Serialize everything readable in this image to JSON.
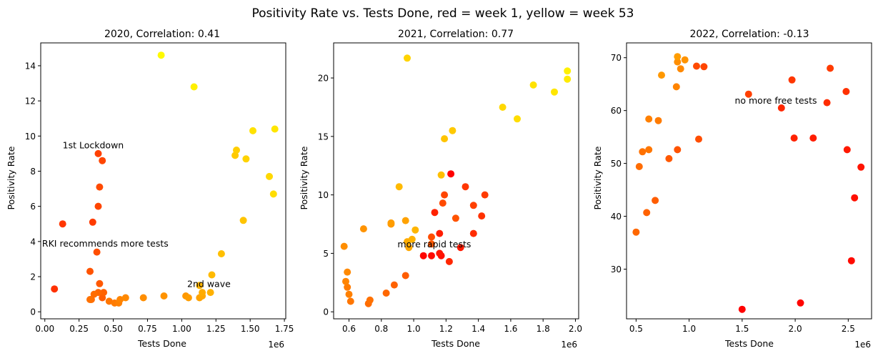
{
  "title": "Positivity Rate vs. Tests Done, red = week 1, yellow = week 53",
  "chart_data": [
    {
      "type": "scatter",
      "title": "2020, Correlation: 0.41",
      "xlabel": "Tests Done",
      "ylabel": "Positivity Rate",
      "x_offset_label": "1e6",
      "xlim": [
        -0.03,
        1.76
      ],
      "ylim": [
        -0.4,
        15.3
      ],
      "xticks": [
        0.0,
        0.25,
        0.5,
        0.75,
        1.0,
        1.25,
        1.5,
        1.75
      ],
      "xtick_labels": [
        "0.00",
        "0.25",
        "0.50",
        "0.75",
        "1.00",
        "1.25",
        "1.50",
        "1.75"
      ],
      "yticks": [
        0,
        2,
        4,
        6,
        8,
        10,
        12,
        14
      ],
      "ytick_labels": [
        "0",
        "2",
        "4",
        "6",
        "8",
        "10",
        "12",
        "14"
      ],
      "color_encoding": "week 1 = red → week 53 = yellow",
      "annotations": [
        {
          "text": "1st Lockdown",
          "x": 0.13,
          "y": 9.3
        },
        {
          "text": "RKI recommends more tests",
          "x": -0.02,
          "y": 3.7
        },
        {
          "text": "2nd wave",
          "x": 1.04,
          "y": 1.4
        }
      ],
      "points": [
        {
          "x": 0.07,
          "y": 1.3,
          "week": 11
        },
        {
          "x": 0.13,
          "y": 5.0,
          "week": 12
        },
        {
          "x": 0.35,
          "y": 5.1,
          "week": 13
        },
        {
          "x": 0.39,
          "y": 9.0,
          "week": 14
        },
        {
          "x": 0.39,
          "y": 6.0,
          "week": 15
        },
        {
          "x": 0.42,
          "y": 8.6,
          "week": 15
        },
        {
          "x": 0.4,
          "y": 7.1,
          "week": 16
        },
        {
          "x": 0.38,
          "y": 3.4,
          "week": 17
        },
        {
          "x": 0.33,
          "y": 2.3,
          "week": 18
        },
        {
          "x": 0.4,
          "y": 1.6,
          "week": 19
        },
        {
          "x": 0.42,
          "y": 0.8,
          "week": 20
        },
        {
          "x": 0.43,
          "y": 1.1,
          "week": 21
        },
        {
          "x": 0.39,
          "y": 1.1,
          "week": 22
        },
        {
          "x": 0.36,
          "y": 1.0,
          "week": 23
        },
        {
          "x": 0.34,
          "y": 0.7,
          "week": 23
        },
        {
          "x": 0.33,
          "y": 0.7,
          "week": 24
        },
        {
          "x": 0.47,
          "y": 0.6,
          "week": 25
        },
        {
          "x": 0.51,
          "y": 0.5,
          "week": 26
        },
        {
          "x": 0.54,
          "y": 0.5,
          "week": 27
        },
        {
          "x": 0.55,
          "y": 0.7,
          "week": 28
        },
        {
          "x": 0.59,
          "y": 0.8,
          "week": 29
        },
        {
          "x": 0.72,
          "y": 0.8,
          "week": 30
        },
        {
          "x": 0.87,
          "y": 0.9,
          "week": 31
        },
        {
          "x": 1.03,
          "y": 0.9,
          "week": 32
        },
        {
          "x": 1.05,
          "y": 0.8,
          "week": 33
        },
        {
          "x": 1.13,
          "y": 0.8,
          "week": 34
        },
        {
          "x": 1.15,
          "y": 0.9,
          "week": 35
        },
        {
          "x": 1.15,
          "y": 1.1,
          "week": 36
        },
        {
          "x": 1.21,
          "y": 1.1,
          "week": 37
        },
        {
          "x": 1.13,
          "y": 1.5,
          "week": 38
        },
        {
          "x": 1.22,
          "y": 2.1,
          "week": 39
        },
        {
          "x": 1.29,
          "y": 3.3,
          "week": 40
        },
        {
          "x": 1.45,
          "y": 5.2,
          "week": 41
        },
        {
          "x": 1.39,
          "y": 8.9,
          "week": 42
        },
        {
          "x": 1.4,
          "y": 9.2,
          "week": 43
        },
        {
          "x": 1.47,
          "y": 8.7,
          "week": 44
        },
        {
          "x": 1.64,
          "y": 7.7,
          "week": 45
        },
        {
          "x": 1.67,
          "y": 6.7,
          "week": 46
        },
        {
          "x": 1.52,
          "y": 10.3,
          "week": 47
        },
        {
          "x": 1.68,
          "y": 10.4,
          "week": 48
        },
        {
          "x": 1.09,
          "y": 12.8,
          "week": 50
        },
        {
          "x": 0.85,
          "y": 14.6,
          "week": 52
        }
      ]
    },
    {
      "type": "scatter",
      "title": "2021, Correlation: 0.77",
      "xlabel": "Tests Done",
      "ylabel": "Positivity Rate",
      "x_offset_label": "1e6",
      "xlim": [
        0.505,
        2.02
      ],
      "ylim": [
        -0.6,
        23.0
      ],
      "xticks": [
        0.6,
        0.8,
        1.0,
        1.2,
        1.4,
        1.6,
        1.8,
        2.0
      ],
      "xtick_labels": [
        "0.6",
        "0.8",
        "1.0",
        "1.2",
        "1.4",
        "1.6",
        "1.8",
        "2.0"
      ],
      "yticks": [
        0,
        5,
        10,
        15,
        20
      ],
      "ytick_labels": [
        "0",
        "5",
        "10",
        "15",
        "20"
      ],
      "color_encoding": "week 1 = red → week 53 = yellow",
      "annotations": [
        {
          "text": "more rapid tests",
          "x": 0.9,
          "y": 5.5
        }
      ],
      "points": [
        {
          "x": 1.23,
          "y": 11.8,
          "week": 1
        },
        {
          "x": 1.06,
          "y": 4.8,
          "week": 2
        },
        {
          "x": 1.11,
          "y": 4.8,
          "week": 3
        },
        {
          "x": 1.17,
          "y": 4.8,
          "week": 4
        },
        {
          "x": 1.16,
          "y": 5.0,
          "week": 5
        },
        {
          "x": 1.29,
          "y": 5.5,
          "week": 6
        },
        {
          "x": 1.16,
          "y": 6.7,
          "week": 7
        },
        {
          "x": 1.13,
          "y": 8.5,
          "week": 8
        },
        {
          "x": 1.22,
          "y": 4.3,
          "week": 9
        },
        {
          "x": 1.37,
          "y": 6.7,
          "week": 10
        },
        {
          "x": 1.42,
          "y": 8.2,
          "week": 11
        },
        {
          "x": 1.32,
          "y": 10.7,
          "week": 12
        },
        {
          "x": 1.44,
          "y": 10.0,
          "week": 13
        },
        {
          "x": 1.37,
          "y": 9.1,
          "week": 14
        },
        {
          "x": 1.19,
          "y": 10.0,
          "week": 15
        },
        {
          "x": 1.18,
          "y": 9.3,
          "week": 16
        },
        {
          "x": 1.11,
          "y": 6.4,
          "week": 17
        },
        {
          "x": 1.26,
          "y": 8.0,
          "week": 18
        },
        {
          "x": 1.11,
          "y": 5.8,
          "week": 19
        },
        {
          "x": 0.95,
          "y": 3.1,
          "week": 20
        },
        {
          "x": 0.88,
          "y": 2.3,
          "week": 21
        },
        {
          "x": 0.83,
          "y": 1.6,
          "week": 22
        },
        {
          "x": 0.72,
          "y": 0.7,
          "week": 23
        },
        {
          "x": 0.73,
          "y": 1.0,
          "week": 24
        },
        {
          "x": 0.61,
          "y": 0.9,
          "week": 25
        },
        {
          "x": 0.59,
          "y": 2.1,
          "week": 26
        },
        {
          "x": 0.6,
          "y": 1.5,
          "week": 27
        },
        {
          "x": 0.58,
          "y": 2.6,
          "week": 28
        },
        {
          "x": 0.59,
          "y": 3.4,
          "week": 29
        },
        {
          "x": 0.57,
          "y": 5.6,
          "week": 30
        },
        {
          "x": 0.69,
          "y": 7.1,
          "week": 31
        },
        {
          "x": 0.86,
          "y": 7.5,
          "week": 32
        },
        {
          "x": 0.86,
          "y": 7.6,
          "week": 33
        },
        {
          "x": 0.95,
          "y": 7.8,
          "week": 34
        },
        {
          "x": 0.97,
          "y": 5.5,
          "week": 35
        },
        {
          "x": 0.96,
          "y": 6.0,
          "week": 36
        },
        {
          "x": 0.99,
          "y": 6.2,
          "week": 37
        },
        {
          "x": 1.01,
          "y": 7.0,
          "week": 38
        },
        {
          "x": 0.91,
          "y": 10.7,
          "week": 39
        },
        {
          "x": 1.17,
          "y": 11.7,
          "week": 40
        },
        {
          "x": 1.19,
          "y": 14.8,
          "week": 41
        },
        {
          "x": 1.24,
          "y": 15.5,
          "week": 42
        },
        {
          "x": 0.96,
          "y": 21.7,
          "week": 44
        },
        {
          "x": 1.55,
          "y": 17.5,
          "week": 45
        },
        {
          "x": 1.64,
          "y": 16.5,
          "week": 46
        },
        {
          "x": 1.74,
          "y": 19.4,
          "week": 47
        },
        {
          "x": 1.87,
          "y": 18.8,
          "week": 48
        },
        {
          "x": 1.95,
          "y": 19.9,
          "week": 49
        },
        {
          "x": 1.95,
          "y": 20.6,
          "week": 50
        }
      ]
    },
    {
      "type": "scatter",
      "title": "2022, Correlation: -0.13",
      "xlabel": "Tests Done",
      "ylabel": "Positivity Rate",
      "x_offset_label": "1e6",
      "xlim": [
        0.41,
        2.72
      ],
      "ylim": [
        20.6,
        72.8
      ],
      "xticks": [
        0.5,
        1.0,
        1.5,
        2.0,
        2.5
      ],
      "xtick_labels": [
        "0.5",
        "1.0",
        "1.5",
        "2.0",
        "2.5"
      ],
      "yticks": [
        30,
        40,
        50,
        60,
        70
      ],
      "ytick_labels": [
        "30",
        "40",
        "50",
        "60",
        "70"
      ],
      "color_encoding": "week 1 = red → week 53 = yellow",
      "annotations": [
        {
          "text": "no more free tests",
          "x": 1.43,
          "y": 61.3
        }
      ],
      "points": [
        {
          "x": 1.5,
          "y": 22.4,
          "week": 1
        },
        {
          "x": 2.05,
          "y": 23.6,
          "week": 2
        },
        {
          "x": 2.53,
          "y": 31.6,
          "week": 3
        },
        {
          "x": 2.56,
          "y": 43.5,
          "week": 4
        },
        {
          "x": 2.62,
          "y": 49.3,
          "week": 5
        },
        {
          "x": 2.49,
          "y": 52.6,
          "week": 6
        },
        {
          "x": 2.17,
          "y": 54.8,
          "week": 7
        },
        {
          "x": 1.99,
          "y": 54.8,
          "week": 8
        },
        {
          "x": 1.87,
          "y": 60.5,
          "week": 9
        },
        {
          "x": 2.3,
          "y": 61.5,
          "week": 10
        },
        {
          "x": 2.48,
          "y": 63.6,
          "week": 11
        },
        {
          "x": 1.97,
          "y": 65.8,
          "week": 12
        },
        {
          "x": 2.33,
          "y": 68.0,
          "week": 13
        },
        {
          "x": 1.56,
          "y": 63.1,
          "week": 14
        },
        {
          "x": 1.14,
          "y": 68.3,
          "week": 15
        },
        {
          "x": 1.07,
          "y": 68.4,
          "week": 16
        },
        {
          "x": 1.09,
          "y": 54.6,
          "week": 17
        },
        {
          "x": 0.89,
          "y": 52.6,
          "week": 18
        },
        {
          "x": 0.81,
          "y": 50.9,
          "week": 19
        },
        {
          "x": 0.68,
          "y": 43.0,
          "week": 20
        },
        {
          "x": 0.6,
          "y": 40.7,
          "week": 21
        },
        {
          "x": 0.5,
          "y": 37.0,
          "week": 22
        },
        {
          "x": 0.53,
          "y": 49.4,
          "week": 23
        },
        {
          "x": 0.56,
          "y": 52.2,
          "week": 24
        },
        {
          "x": 0.62,
          "y": 52.6,
          "week": 25
        },
        {
          "x": 0.71,
          "y": 58.1,
          "week": 26
        },
        {
          "x": 0.62,
          "y": 58.4,
          "week": 27
        },
        {
          "x": 0.88,
          "y": 64.5,
          "week": 28
        },
        {
          "x": 0.92,
          "y": 67.9,
          "week": 29
        },
        {
          "x": 0.89,
          "y": 69.2,
          "week": 30
        },
        {
          "x": 0.96,
          "y": 69.6,
          "week": 31
        },
        {
          "x": 0.74,
          "y": 66.7,
          "week": 32
        },
        {
          "x": 0.89,
          "y": 70.2,
          "week": 33
        }
      ]
    }
  ]
}
